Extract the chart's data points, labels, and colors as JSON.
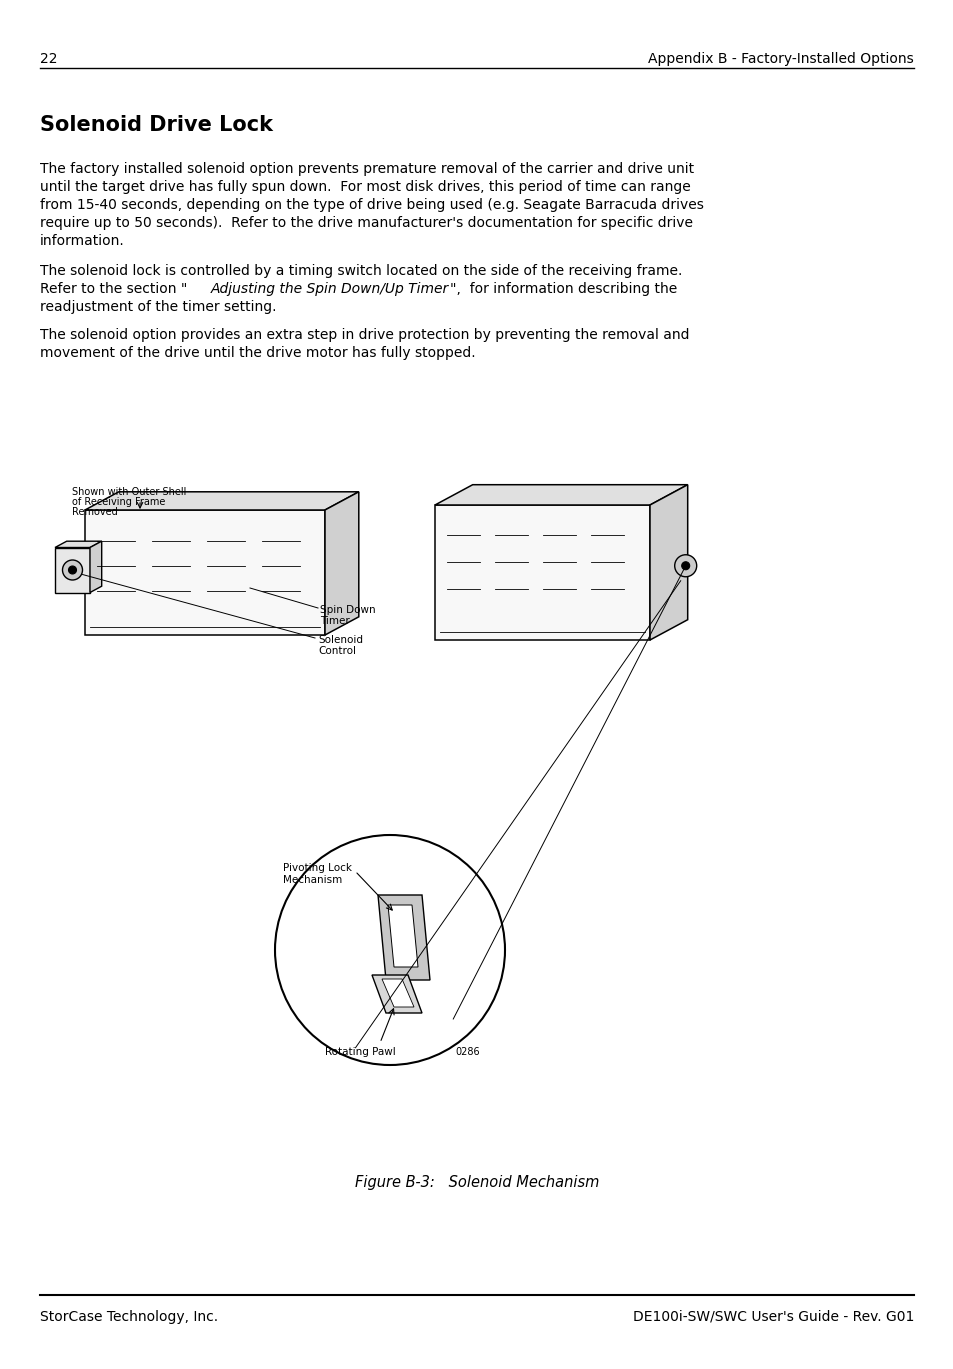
{
  "page_number": "22",
  "header_right": "Appendix B - Factory-Installed Options",
  "footer_left": "StorCase Technology, Inc.",
  "footer_right": "DE100i-SW/SWC User's Guide - Rev. G01",
  "title": "Solenoid Drive Lock",
  "para1_lines": [
    "The factory installed solenoid option prevents premature removal of the carrier and drive unit",
    "until the target drive has fully spun down.  For most disk drives, this period of time can range",
    "from 15-40 seconds, depending on the type of drive being used (e.g. Seagate Barracuda drives",
    "require up to 50 seconds).  Refer to the drive manufacturer's documentation for specific drive",
    "information."
  ],
  "para2_line1": "The solenoid lock is controlled by a timing switch located on the side of the receiving frame.",
  "para2_line2a": "Refer to the section \"",
  "para2_line2b": "Adjusting the Spin Down/Up Timer",
  "para2_line2c": "\",  for information describing the",
  "para2_line3": "readjustment of the timer setting.",
  "para3_lines": [
    "The solenoid option provides an extra step in drive protection by preventing the removal and",
    "movement of the drive until the drive motor has fully stopped."
  ],
  "figure_caption": "Figure B-3:   Solenoid Mechanism",
  "label_outer_shell_line1": "Shown with Outer Shell",
  "label_outer_shell_line2": "of Receiving Frame",
  "label_outer_shell_line3": "Removed",
  "label_spin_down_timer_line1": "Spin Down",
  "label_spin_down_timer_line2": "Timer",
  "label_solenoid_control_line1": "Solenoid",
  "label_solenoid_control_line2": "Control",
  "label_pivoting_lock_line1": "Pivoting Lock",
  "label_pivoting_lock_line2": "Mechanism",
  "label_rotating_pawl": "Rotating Pawl",
  "label_part_number": "0286",
  "bg_color": "#ffffff",
  "text_color": "#000000",
  "line_color": "#000000"
}
